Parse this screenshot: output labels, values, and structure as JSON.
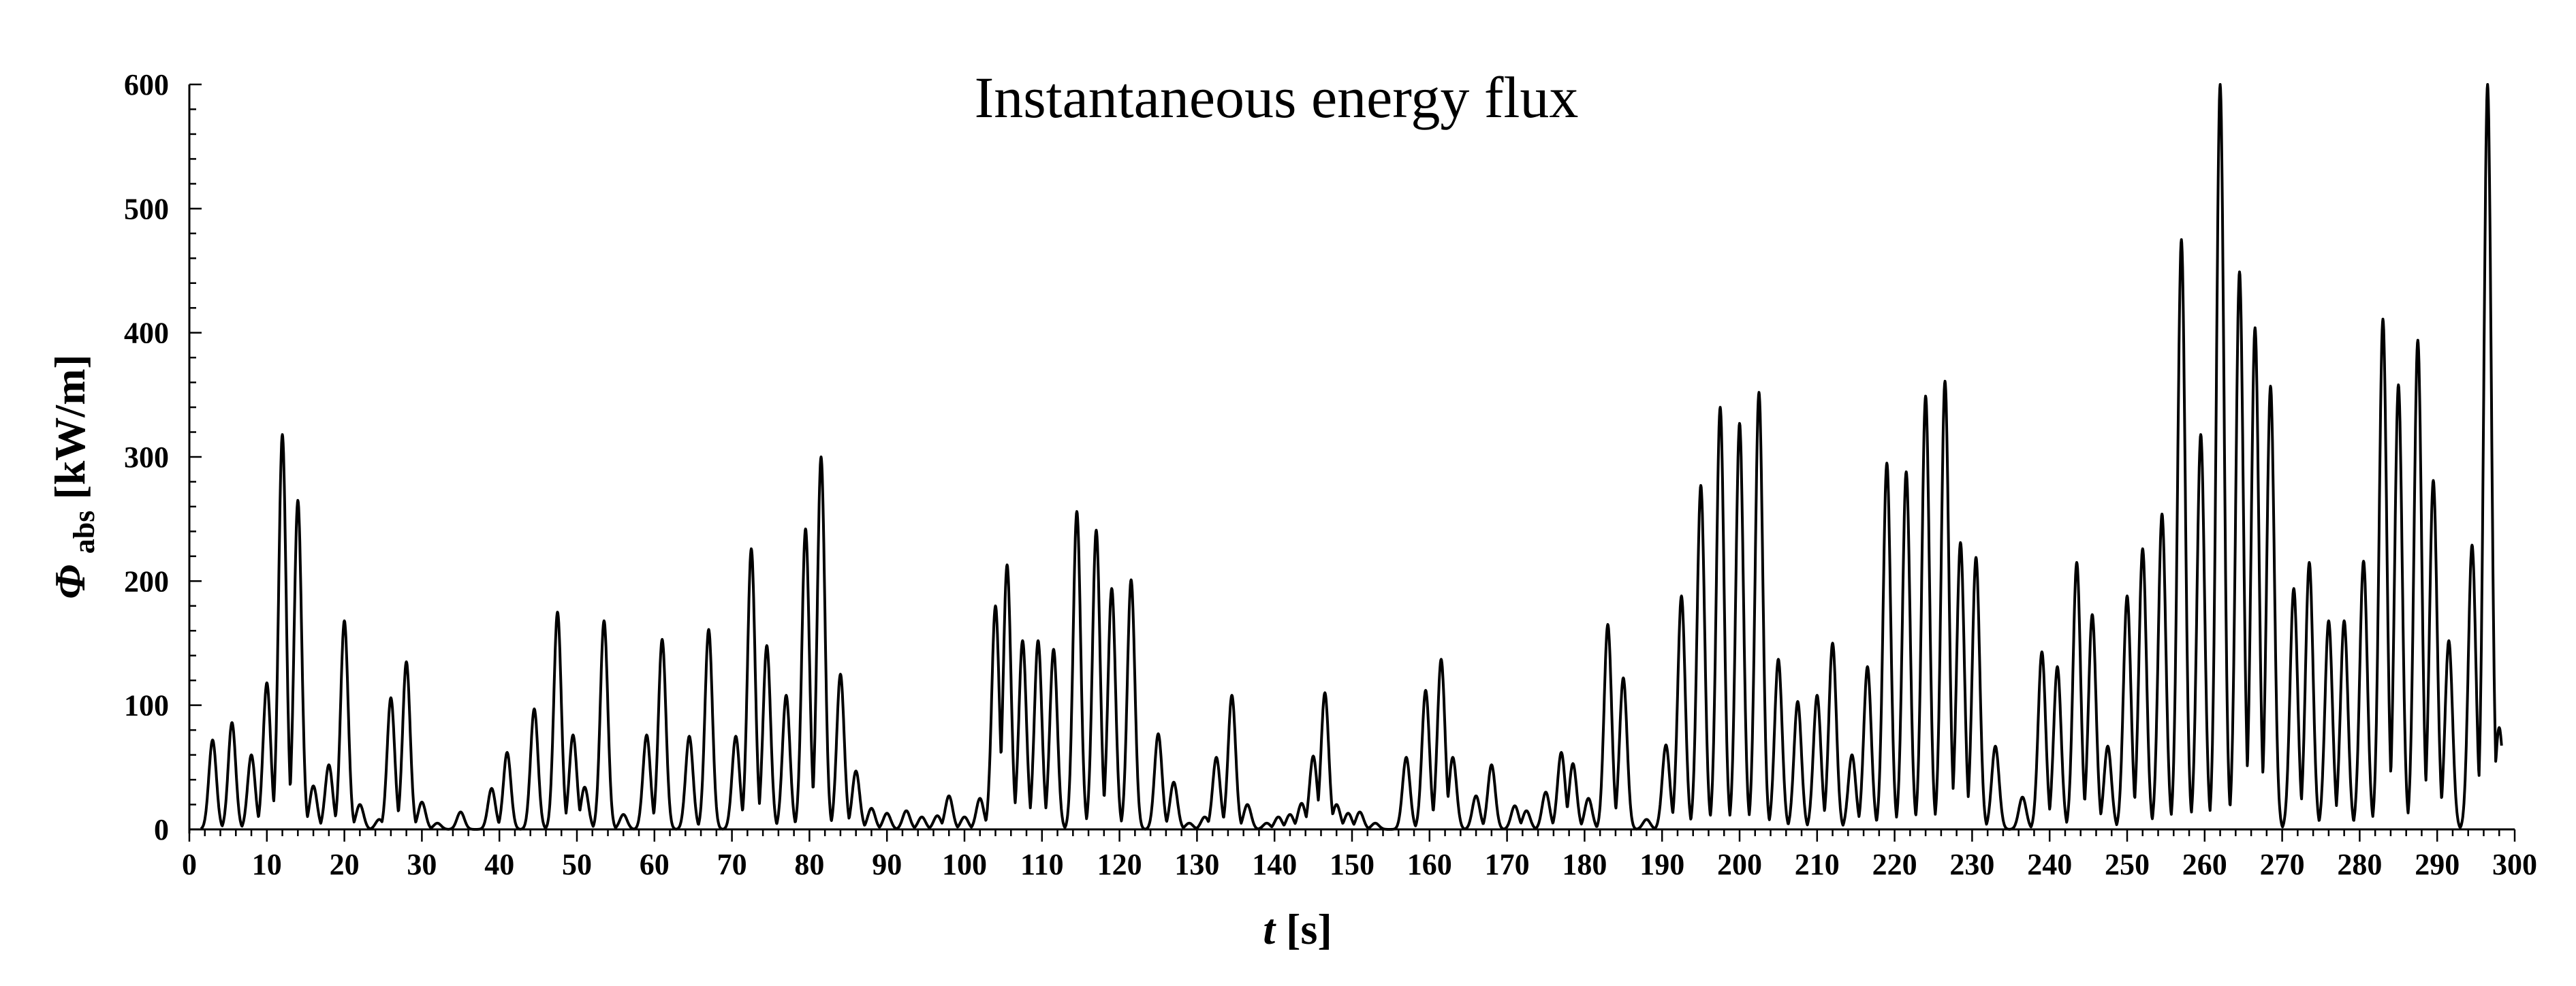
{
  "chart_data": {
    "type": "line",
    "title": "Instantaneous energy flux",
    "xlabel": {
      "symbol": "t",
      "unit": "[s]"
    },
    "ylabel": {
      "symbol": "Φ",
      "subscript": "abs",
      "unit": "[kW/m]"
    },
    "xlim": [
      0,
      300
    ],
    "ylim": [
      0,
      600
    ],
    "x_ticks": [
      "0",
      "10",
      "20",
      "30",
      "40",
      "50",
      "60",
      "70",
      "80",
      "90",
      "100",
      "110",
      "120",
      "130",
      "140",
      "150",
      "160",
      "170",
      "180",
      "190",
      "200",
      "210",
      "220",
      "230",
      "240",
      "250",
      "260",
      "270",
      "280",
      "290",
      "300"
    ],
    "y_ticks": [
      "0",
      "100",
      "200",
      "300",
      "400",
      "500",
      "600"
    ],
    "grid": false,
    "legend": "none",
    "series": [
      {
        "name": "Φabs",
        "color": "#000000",
        "peaks": [
          [
            3,
            72
          ],
          [
            5.5,
            86
          ],
          [
            8,
            60
          ],
          [
            10,
            118
          ],
          [
            12,
            318
          ],
          [
            14,
            265
          ],
          [
            16,
            35
          ],
          [
            18,
            52
          ],
          [
            20,
            168
          ],
          [
            22,
            20
          ],
          [
            24.5,
            8
          ],
          [
            26,
            106
          ],
          [
            28,
            135
          ],
          [
            30,
            22
          ],
          [
            32,
            5
          ],
          [
            35,
            14
          ],
          [
            39,
            33
          ],
          [
            41,
            62
          ],
          [
            44.5,
            97
          ],
          [
            47.5,
            175
          ],
          [
            49.5,
            76
          ],
          [
            51,
            34
          ],
          [
            53.5,
            168
          ],
          [
            56,
            12
          ],
          [
            59,
            76
          ],
          [
            61,
            153
          ],
          [
            64.5,
            75
          ],
          [
            67,
            161
          ],
          [
            70.5,
            75
          ],
          [
            72.5,
            226
          ],
          [
            74.5,
            148
          ],
          [
            77,
            108
          ],
          [
            79.5,
            242
          ],
          [
            81.5,
            300
          ],
          [
            84,
            125
          ],
          [
            86,
            47
          ],
          [
            88,
            17
          ],
          [
            90,
            13
          ],
          [
            92.5,
            15
          ],
          [
            94.5,
            10
          ],
          [
            96.5,
            11
          ],
          [
            98,
            27
          ],
          [
            100,
            10
          ],
          [
            102,
            25
          ],
          [
            104,
            180
          ],
          [
            105.5,
            213
          ],
          [
            107.5,
            152
          ],
          [
            109.5,
            152
          ],
          [
            111.5,
            145
          ],
          [
            114.5,
            256
          ],
          [
            117,
            241
          ],
          [
            119,
            194
          ],
          [
            121.5,
            201
          ],
          [
            125,
            77
          ],
          [
            127,
            38
          ],
          [
            129,
            5
          ],
          [
            131,
            10
          ],
          [
            132.5,
            58
          ],
          [
            134.5,
            108
          ],
          [
            136.5,
            20
          ],
          [
            139,
            5
          ],
          [
            140.5,
            10
          ],
          [
            142,
            12
          ],
          [
            143.5,
            21
          ],
          [
            145,
            59
          ],
          [
            146.5,
            110
          ],
          [
            148,
            20
          ],
          [
            149.5,
            13
          ],
          [
            151,
            14
          ],
          [
            153,
            5
          ],
          [
            157,
            58
          ],
          [
            159.5,
            112
          ],
          [
            161.5,
            137
          ],
          [
            163,
            58
          ],
          [
            166,
            27
          ],
          [
            168,
            52
          ],
          [
            171,
            19
          ],
          [
            172.5,
            15
          ],
          [
            175,
            30
          ],
          [
            177,
            62
          ],
          [
            178.5,
            53
          ],
          [
            180.5,
            25
          ],
          [
            183,
            165
          ],
          [
            185,
            122
          ],
          [
            188,
            8
          ],
          [
            190.5,
            68
          ],
          [
            192.5,
            188
          ],
          [
            195,
            277
          ],
          [
            197.5,
            340
          ],
          [
            200,
            327
          ],
          [
            202.5,
            352
          ],
          [
            205,
            137
          ],
          [
            207.5,
            103
          ],
          [
            210,
            108
          ],
          [
            212,
            150
          ],
          [
            214.5,
            60
          ],
          [
            216.5,
            131
          ],
          [
            219,
            295
          ],
          [
            221.5,
            288
          ],
          [
            224,
            349
          ],
          [
            226.5,
            361
          ],
          [
            228.5,
            231
          ],
          [
            230.5,
            219
          ],
          [
            233,
            67
          ],
          [
            236.5,
            26
          ],
          [
            239,
            143
          ],
          [
            241,
            131
          ],
          [
            243.5,
            215
          ],
          [
            245.5,
            173
          ],
          [
            247.5,
            67
          ],
          [
            250,
            188
          ],
          [
            252,
            226
          ],
          [
            254.5,
            254
          ],
          [
            257,
            475
          ],
          [
            259.5,
            318
          ],
          [
            262,
            600
          ],
          [
            264.5,
            449
          ],
          [
            266.5,
            404
          ],
          [
            268.5,
            357
          ],
          [
            271.5,
            194
          ],
          [
            273.5,
            215
          ],
          [
            276,
            168
          ],
          [
            278,
            168
          ],
          [
            280.5,
            216
          ],
          [
            283,
            411
          ],
          [
            285,
            358
          ],
          [
            287.5,
            394
          ],
          [
            289.5,
            281
          ],
          [
            291.5,
            152
          ],
          [
            294.5,
            229
          ],
          [
            296.5,
            600
          ],
          [
            298,
            82
          ]
        ]
      }
    ]
  }
}
